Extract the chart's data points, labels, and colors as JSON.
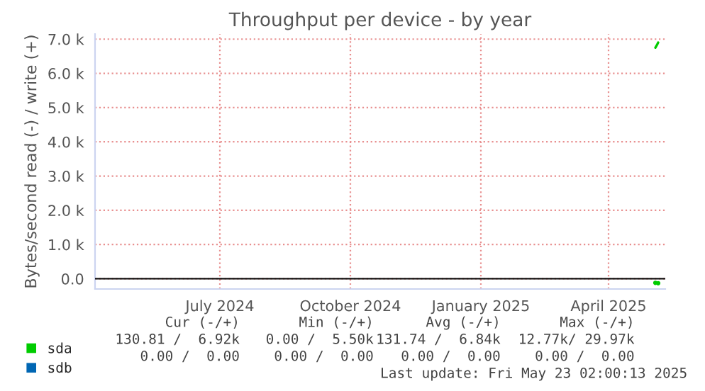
{
  "chart_data": {
    "type": "line",
    "title": "Throughput per device - by year",
    "ylabel": "Bytes/second read (-) / write (+)",
    "xlim": [
      "2024-04-04",
      "2025-05-11"
    ],
    "xticks": [
      {
        "value": "2024-07-01",
        "label": "July 2024"
      },
      {
        "value": "2024-10-01",
        "label": "October 2024"
      },
      {
        "value": "2025-01-01",
        "label": "January 2025"
      },
      {
        "value": "2025-04-01",
        "label": "April 2025"
      }
    ],
    "ylim": [
      -300,
      7150
    ],
    "yticks": [
      {
        "value": 0,
        "label": "0.0"
      },
      {
        "value": 1000,
        "label": "1.0 k"
      },
      {
        "value": 2000,
        "label": "2.0 k"
      },
      {
        "value": 3000,
        "label": "3.0 k"
      },
      {
        "value": 4000,
        "label": "4.0 k"
      },
      {
        "value": 5000,
        "label": "5.0 k"
      },
      {
        "value": 6000,
        "label": "6.0 k"
      },
      {
        "value": 7000,
        "label": "7.0 k"
      }
    ],
    "grid": true,
    "legend": "bottom left",
    "marker": "none",
    "line_style": "solid",
    "ref_lines": [
      {
        "axis": "y",
        "value": 0,
        "color": "#000000"
      }
    ],
    "series": [
      {
        "name": "sda",
        "color": "#00cc00",
        "x": [
          "2025-05-04",
          "2025-05-05",
          "2025-05-06"
        ],
        "values": [
          6750,
          6820,
          6900
        ]
      },
      {
        "type": "scatter",
        "marker": "circle",
        "color": "#00cc00",
        "x": [
          "2025-05-04",
          "2025-05-06"
        ],
        "values": [
          -120,
          -130
        ]
      },
      {
        "name": "sdb",
        "color": "#0066b3"
      }
    ],
    "annotations": [
      "Cur (-/+)",
      "Min (-/+)",
      "Avg (-/+)",
      "Max (-/+)",
      "130.81 /  6.92k",
      "0.00 /  5.50k",
      "131.74 /  6.84k",
      "12.77k/ 29.97k",
      "0.00 /  0.00",
      "0.00 /  0.00",
      "0.00 /  0.00",
      "0.00 /  0.00",
      "Last update: Fri May 23 02:00:13 2025"
    ]
  }
}
